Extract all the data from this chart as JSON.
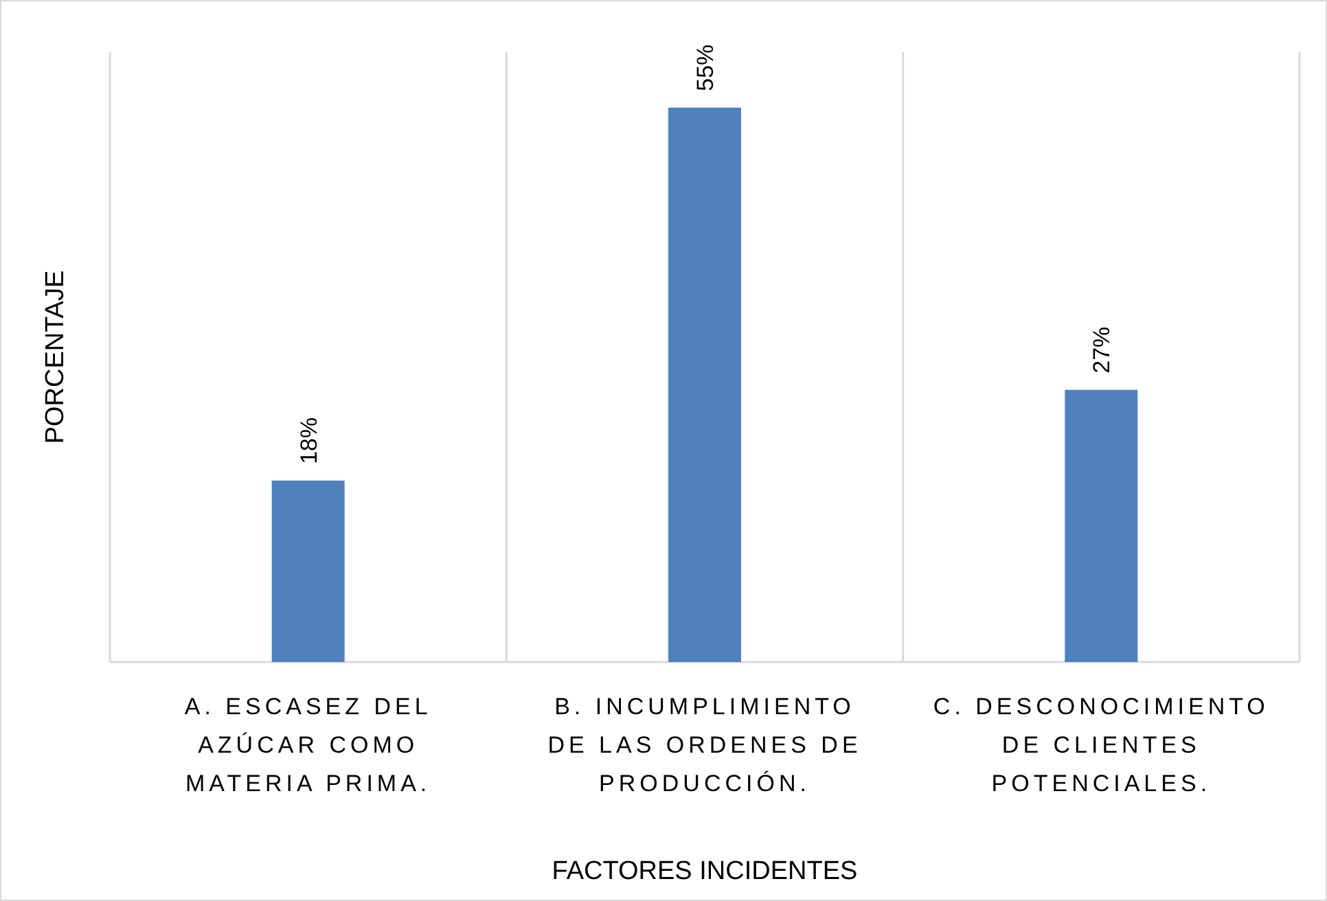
{
  "chart_data": {
    "type": "bar",
    "xlabel": "FACTORES INCIDENTES",
    "ylabel": "PORCENTAJE",
    "categories": [
      "A. ESCASEZ DEL AZÚCAR COMO MATERIA PRIMA.",
      "B. INCUMPLIMIENTO DE LAS ORDENES DE PRODUCCIÓN.",
      "C. DESCONOCIMIENTO DE CLIENTES POTENCIALES."
    ],
    "values": [
      18,
      55,
      27
    ],
    "value_labels": [
      "18%",
      "55%",
      "27%"
    ],
    "color": "#4f81bd",
    "grid": "x"
  }
}
